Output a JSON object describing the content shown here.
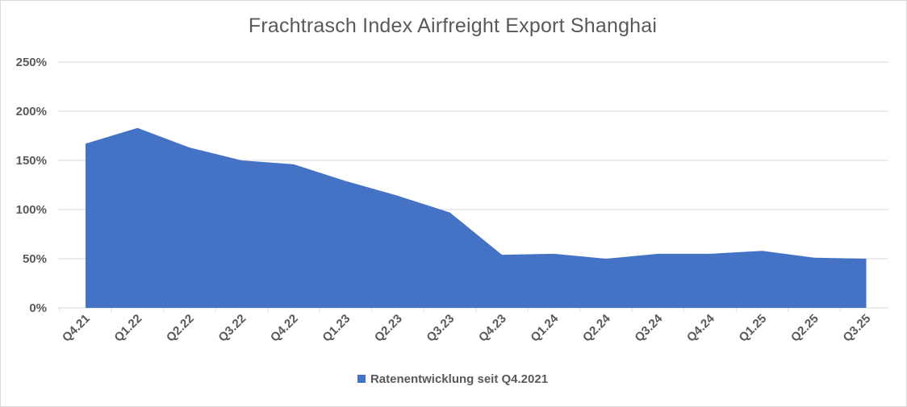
{
  "chart_data": {
    "type": "area",
    "title": "Frachtrasch Index Airfreight Export Shanghai",
    "categories": [
      "Q4.21",
      "Q1.22",
      "Q2.22",
      "Q3.22",
      "Q4.22",
      "Q1.23",
      "Q2.23",
      "Q3.23",
      "Q4.23",
      "Q1.24",
      "Q2.24",
      "Q3.24",
      "Q4.24",
      "Q1.25",
      "Q2.25",
      "Q3.25"
    ],
    "y_ticks": [
      "0%",
      "50%",
      "100%",
      "150%",
      "200%",
      "250%"
    ],
    "ylim": [
      0,
      250
    ],
    "series": [
      {
        "name": "Ratenentwicklung seit Q4.2021",
        "color": "#4472c4",
        "values": [
          167,
          183,
          163,
          150,
          146,
          129,
          114,
          97,
          54,
          55,
          50,
          55,
          55,
          58,
          51,
          50
        ]
      }
    ],
    "grid": true,
    "legend_position": "bottom"
  }
}
